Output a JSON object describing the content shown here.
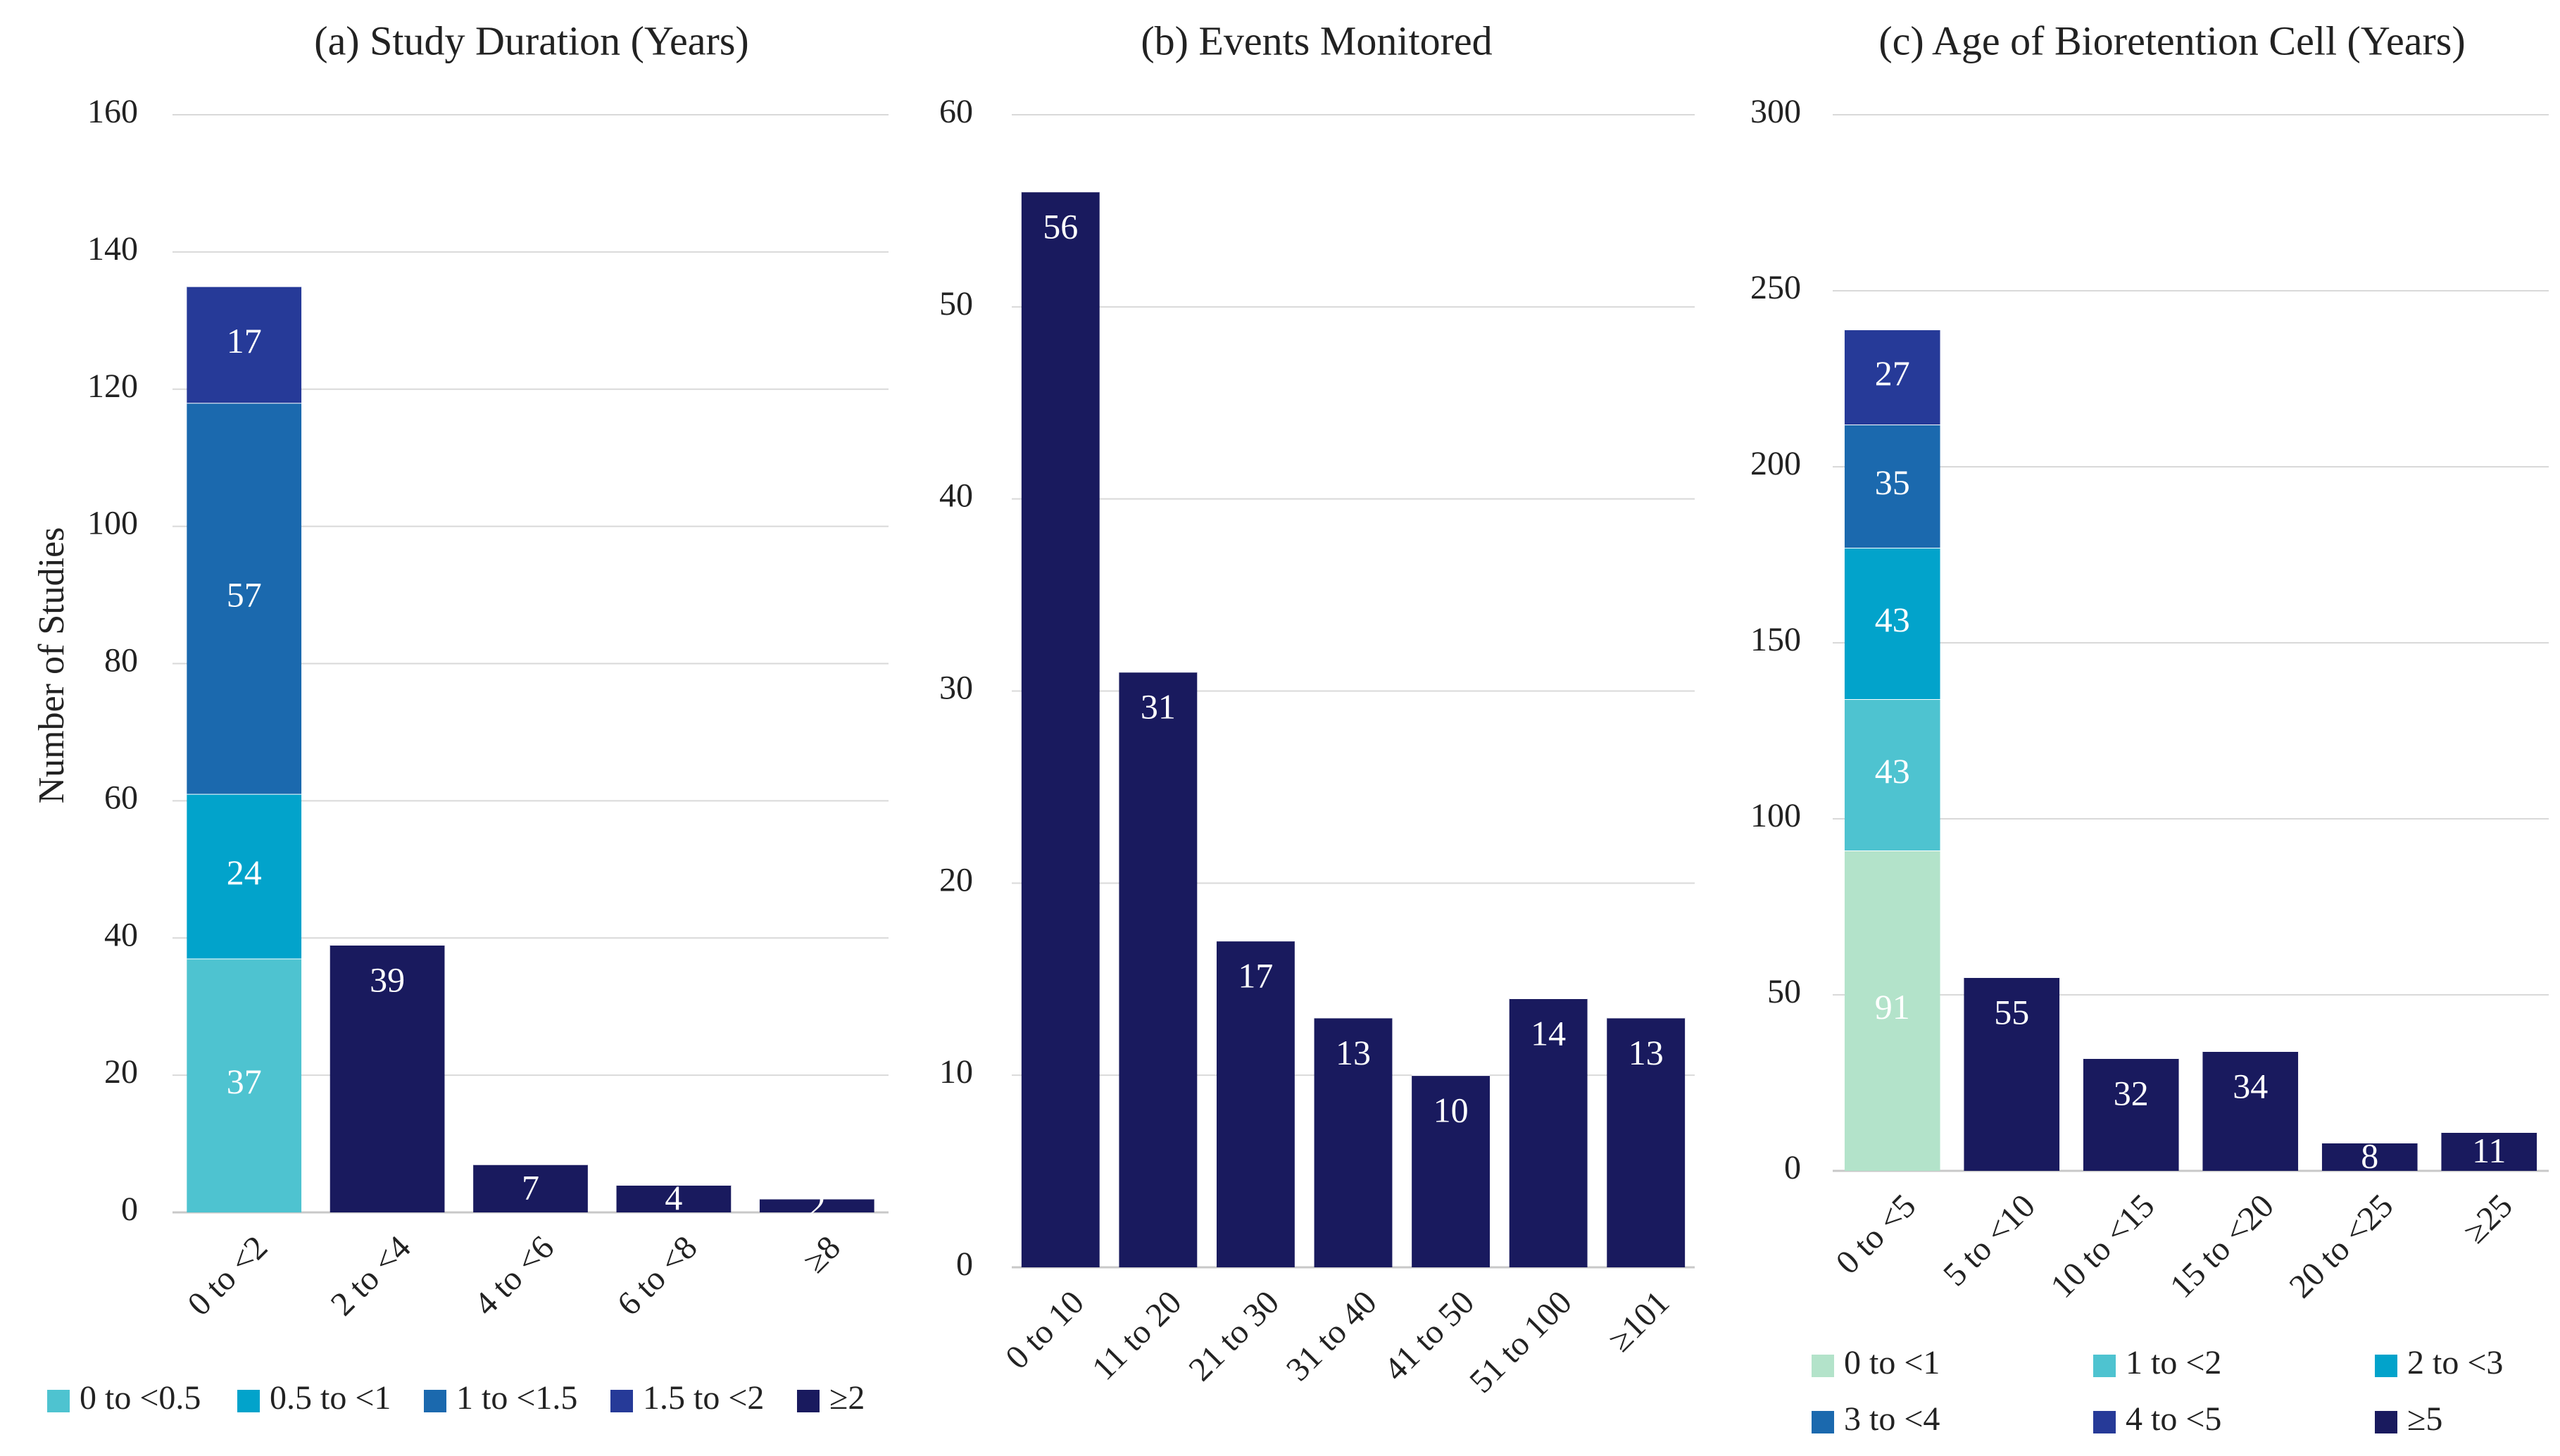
{
  "figure": {
    "shared_ylabel": "Number of Studies"
  },
  "chart_data": [
    {
      "id": "a",
      "type": "stacked-bar",
      "title": "(a) Study Duration (Years)",
      "xlabel": "",
      "ylabel": "Number of Studies",
      "ylim": [
        0,
        160
      ],
      "yticks": [
        0,
        20,
        40,
        60,
        80,
        100,
        120,
        140,
        160
      ],
      "grid": true,
      "categories": [
        "0 to <2",
        "2 to <4",
        "4 to <6",
        "6 to <8",
        "≥8"
      ],
      "series": [
        {
          "name": "0 to <0.5",
          "color": "#4EC3D0",
          "values": [
            37,
            0,
            0,
            0,
            0
          ]
        },
        {
          "name": "0.5 to <1",
          "color": "#02A3CB",
          "values": [
            24,
            0,
            0,
            0,
            0
          ]
        },
        {
          "name": "1 to <1.5",
          "color": "#1B69AE",
          "values": [
            57,
            0,
            0,
            0,
            0
          ]
        },
        {
          "name": "1.5 to <2",
          "color": "#263A98",
          "values": [
            17,
            0,
            0,
            0,
            0
          ]
        },
        {
          "name": "≥2",
          "color": "#191A5E",
          "values": [
            0,
            39,
            7,
            4,
            2
          ]
        }
      ],
      "legend": {
        "placement": "bottom",
        "columns": 5,
        "items": [
          "0 to <0.5",
          "0.5 to <1",
          "1 to <1.5",
          "1.5 to <2",
          "≥2"
        ]
      }
    },
    {
      "id": "b",
      "type": "bar",
      "title": "(b) Events Monitored",
      "xlabel": "",
      "ylabel": "",
      "ylim": [
        0,
        60
      ],
      "yticks": [
        0,
        10,
        20,
        30,
        40,
        50,
        60
      ],
      "grid": true,
      "categories": [
        "0 to 10",
        "11 to 20",
        "21 to 30",
        "31 to 40",
        "41 to 50",
        "51 to 100",
        "≥101"
      ],
      "series": [
        {
          "name": "Events Monitored",
          "color": "#191A5E",
          "values": [
            56,
            31,
            17,
            13,
            10,
            14,
            13
          ]
        }
      ]
    },
    {
      "id": "c",
      "type": "stacked-bar",
      "title": "(c) Age of Bioretention Cell (Years)",
      "xlabel": "",
      "ylabel": "",
      "ylim": [
        0,
        300
      ],
      "yticks": [
        0,
        50,
        100,
        150,
        200,
        250,
        300
      ],
      "grid": true,
      "categories": [
        "0 to <5",
        "5 to <10",
        "10 to <15",
        "15 to <20",
        "20 to <25",
        "≥25"
      ],
      "series": [
        {
          "name": "0 to <1",
          "color": "#B3E3CA",
          "values": [
            91,
            0,
            0,
            0,
            0,
            0
          ]
        },
        {
          "name": "1 to <2",
          "color": "#4EC3D0",
          "values": [
            43,
            0,
            0,
            0,
            0,
            0
          ]
        },
        {
          "name": "2 to <3",
          "color": "#02A3CB",
          "values": [
            43,
            0,
            0,
            0,
            0,
            0
          ]
        },
        {
          "name": "3 to <4",
          "color": "#1B69AE",
          "values": [
            35,
            0,
            0,
            0,
            0,
            0
          ]
        },
        {
          "name": "4 to <5",
          "color": "#263A98",
          "values": [
            27,
            0,
            0,
            0,
            0,
            0
          ]
        },
        {
          "name": "≥5",
          "color": "#191A5E",
          "values": [
            0,
            55,
            32,
            34,
            8,
            11
          ]
        }
      ],
      "legend": {
        "placement": "bottom",
        "columns": 3,
        "items": [
          "0 to <1",
          "1 to <2",
          "2 to <3",
          "3 to <4",
          "4 to <5",
          "≥5"
        ]
      }
    }
  ]
}
